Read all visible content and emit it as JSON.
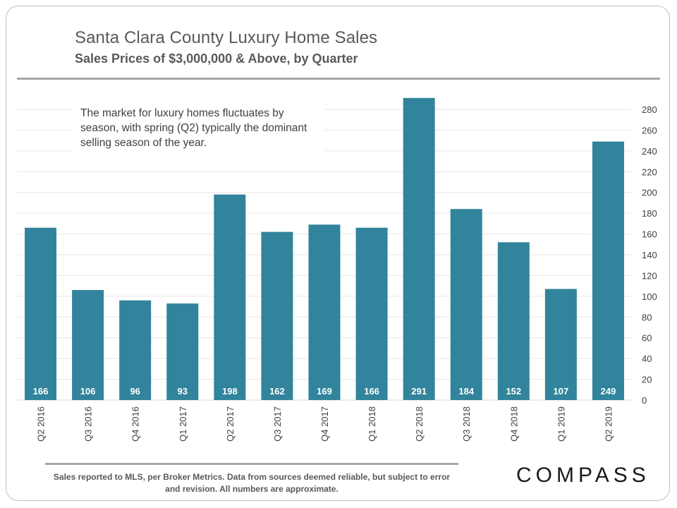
{
  "title": "Santa Clara County Luxury Home Sales",
  "subtitle": "Sales Prices of $3,000,000 & Above, by Quarter",
  "annotation": "The market for luxury homes fluctuates by season, with spring (Q2) typically the dominant selling season of the year.",
  "footnote": "Sales reported to MLS, per Broker Metrics. Data from sources  deemed reliable, but subject to error and revision. All numbers are approximate.",
  "logo": "COMPASS",
  "colors": {
    "bar": "#31849b",
    "grid": "#e6e6e6",
    "text": "#404040"
  },
  "chart_data": {
    "type": "bar",
    "title": "Santa Clara County Luxury Home Sales",
    "subtitle": "Sales Prices of $3,000,000 & Above, by Quarter",
    "xlabel": "",
    "ylabel": "",
    "categories": [
      "Q2 2016",
      "Q3 2016",
      "Q4 2016",
      "Q1 2017",
      "Q2 2017",
      "Q3 2017",
      "Q4 2017",
      "Q1 2018",
      "Q2 2018",
      "Q3 2018",
      "Q4 2018",
      "Q1 2019",
      "Q2 2019"
    ],
    "values": [
      166,
      106,
      96,
      93,
      198,
      162,
      169,
      166,
      291,
      184,
      152,
      107,
      249
    ],
    "data_labels": [
      "166",
      "106",
      "96",
      "93",
      "198",
      "162",
      "169",
      "166",
      "291",
      "184",
      "152",
      "107",
      "249"
    ],
    "ylim": [
      0,
      290
    ],
    "yticks": [
      "0",
      "20",
      "40",
      "60",
      "80",
      "100",
      "120",
      "140",
      "160",
      "180",
      "200",
      "220",
      "240",
      "260",
      "280"
    ],
    "y_axis_position": "right",
    "grid": true
  }
}
